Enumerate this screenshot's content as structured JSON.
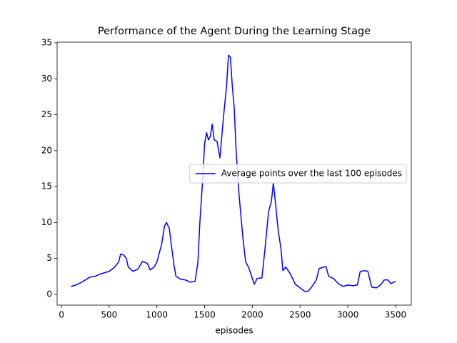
{
  "chart_data": {
    "type": "line",
    "title": "Performance of the Agent During the Learning Stage",
    "x_label": "episodes",
    "x": [
      100,
      150,
      200,
      250,
      300,
      350,
      400,
      450,
      500,
      550,
      600,
      620,
      650,
      680,
      700,
      750,
      800,
      850,
      900,
      930,
      970,
      1000,
      1050,
      1080,
      1100,
      1130,
      1150,
      1180,
      1200,
      1250,
      1300,
      1350,
      1400,
      1430,
      1450,
      1480,
      1500,
      1520,
      1540,
      1560,
      1580,
      1600,
      1630,
      1660,
      1700,
      1730,
      1750,
      1770,
      1790,
      1810,
      1830,
      1860,
      1900,
      1930,
      1960,
      2000,
      2020,
      2050,
      2100,
      2130,
      2170,
      2200,
      2220,
      2240,
      2270,
      2300,
      2320,
      2350,
      2400,
      2450,
      2500,
      2550,
      2580,
      2620,
      2670,
      2700,
      2750,
      2770,
      2800,
      2850,
      2900,
      2950,
      3000,
      3050,
      3100,
      3130,
      3180,
      3210,
      3250,
      3300,
      3350,
      3380,
      3420,
      3450,
      3500
    ],
    "series": [
      {
        "name": "Average points over the last 100 episodes",
        "color": "#0000ff",
        "values": [
          1.1,
          1.3,
          1.6,
          2.0,
          2.4,
          2.5,
          2.8,
          3.0,
          3.2,
          3.7,
          4.5,
          5.6,
          5.5,
          5.0,
          3.8,
          3.2,
          3.5,
          4.6,
          4.3,
          3.4,
          3.8,
          4.5,
          7.0,
          9.5,
          10.0,
          9.2,
          7.0,
          4.0,
          2.5,
          2.1,
          2.0,
          1.7,
          1.8,
          4.5,
          10.0,
          16.0,
          21.0,
          22.5,
          21.5,
          22.0,
          23.7,
          21.5,
          21.3,
          19.0,
          25.0,
          29.0,
          33.3,
          33.0,
          29.0,
          26.0,
          20.0,
          14.0,
          8.0,
          4.5,
          3.8,
          2.2,
          1.4,
          2.2,
          2.3,
          6.0,
          11.5,
          13.0,
          15.5,
          13.0,
          9.0,
          6.3,
          3.3,
          3.8,
          2.8,
          1.4,
          0.9,
          0.4,
          0.4,
          1.0,
          2.0,
          3.6,
          3.8,
          3.9,
          2.5,
          2.2,
          1.5,
          1.1,
          1.3,
          1.2,
          1.3,
          3.2,
          3.3,
          3.2,
          1.0,
          0.9,
          1.4,
          2.0,
          2.0,
          1.5,
          1.8
        ]
      }
    ],
    "xlim": [
      -45,
      3665
    ],
    "ylim": [
      -1.5,
      35.1
    ],
    "xticks": [
      0,
      500,
      1000,
      1500,
      2000,
      2500,
      3000,
      3500
    ],
    "yticks": [
      0,
      5,
      10,
      15,
      20,
      25,
      30,
      35
    ],
    "legend": "center right"
  }
}
